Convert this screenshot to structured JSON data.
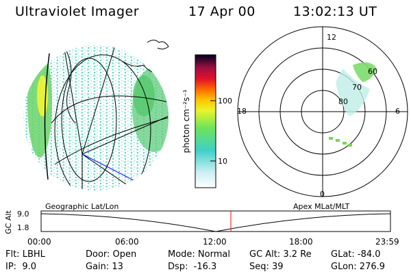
{
  "header": {
    "title": "Ultraviolet Imager",
    "date": "17 Apr 00",
    "time": "13:02:13 UT"
  },
  "colorbar": {
    "label": "photon cm⁻²s⁻¹",
    "ticks": [
      "100",
      "10"
    ]
  },
  "polar_plot": {
    "mlt_labels": {
      "top": "12",
      "right": "6",
      "bottom": "0",
      "left": "18"
    },
    "lat_labels": [
      "60",
      "70",
      "80"
    ]
  },
  "timeline": {
    "left_label": "Geographic Lat/Lon",
    "right_label": "Apex MLat/MLT",
    "axis_title": "GC Alt",
    "y_ticks": [
      "9.0",
      "1.8"
    ],
    "x_ticks": [
      "00:00",
      "06:00",
      "12:00",
      "18:00",
      "23:59"
    ]
  },
  "info": {
    "flt": "Flt: LBHL",
    "ip": "IP:  9.0",
    "door": "Door: Open",
    "gain": "Gain: 13",
    "mode": "Mode: Normal",
    "dsp": "Dsp:  -16.3",
    "gcalt": "GC Alt: 3.2 Re",
    "seq": "Seq: 39",
    "glat": "GLat: -84.0",
    "glon": "GLon: 276.9"
  },
  "colors": {
    "accent_red": "#ff0000",
    "path_blue": "#0000ff"
  }
}
